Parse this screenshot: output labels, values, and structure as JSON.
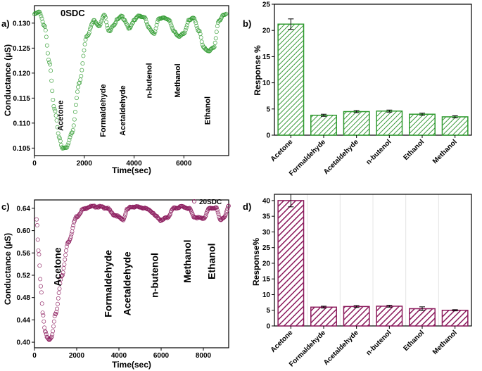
{
  "colors": {
    "green": "#2e9a2e",
    "green_fill": "#7fcf7a",
    "purple": "#8b1a5c",
    "purple_fill": "#c05a92"
  },
  "chart_data": [
    {
      "id": "a",
      "type": "scatter",
      "panel_label": "a)",
      "legend": "0SDC",
      "xlabel": "Time(sec)",
      "ylabel": "Conductance (µS)",
      "xlim": [
        0,
        7800
      ],
      "ylim": [
        0.1035,
        0.1335
      ],
      "xticks": [
        0,
        2000,
        4000,
        6000
      ],
      "yticks": [
        0.105,
        0.11,
        0.115,
        0.12,
        0.125,
        0.13
      ],
      "ytick_labels": [
        "0.105",
        "0.110",
        "0.115",
        "0.120",
        "0.125",
        "0.130"
      ],
      "x": [
        0,
        200,
        400,
        600,
        800,
        1000,
        1100,
        1300,
        1500,
        1800,
        2100,
        2400,
        2600,
        2800,
        3000,
        3200,
        3350,
        3500,
        3600,
        3800,
        4000,
        4200,
        4400,
        4600,
        4800,
        5000,
        5200,
        5400,
        5600,
        5800,
        6000,
        6200,
        6400,
        6600,
        6800,
        7000,
        7200,
        7400,
        7600,
        7700
      ],
      "values": [
        0.1318,
        0.1322,
        0.1295,
        0.122,
        0.113,
        0.107,
        0.105,
        0.1052,
        0.108,
        0.118,
        0.1275,
        0.1305,
        0.1295,
        0.1315,
        0.1285,
        0.1295,
        0.131,
        0.1315,
        0.1305,
        0.129,
        0.1305,
        0.1315,
        0.1312,
        0.129,
        0.128,
        0.1308,
        0.1312,
        0.1305,
        0.1285,
        0.1272,
        0.128,
        0.1305,
        0.131,
        0.1285,
        0.125,
        0.1245,
        0.125,
        0.1305,
        0.1315,
        0.1318
      ],
      "annotations": [
        {
          "text": "Acetone",
          "x": 1150,
          "y": 0.1115
        },
        {
          "text": "Formaldehyde",
          "x": 2850,
          "y": 0.1125
        },
        {
          "text": "Acetaldehyde",
          "x": 3650,
          "y": 0.1125
        },
        {
          "text": "n-butenol",
          "x": 4700,
          "y": 0.1185
        },
        {
          "text": "Methanol",
          "x": 5850,
          "y": 0.1185
        },
        {
          "text": "Ethanol",
          "x": 7050,
          "y": 0.1125
        }
      ]
    },
    {
      "id": "b",
      "type": "bar",
      "panel_label": "b)",
      "ylabel": "Response %",
      "ylim": [
        0,
        25
      ],
      "yticks": [
        0,
        5,
        10,
        15,
        20,
        25
      ],
      "categories": [
        "Acetone",
        "Formaldehyde",
        "Acetaldehyde",
        "n-butenol",
        "Ethanol",
        "Methanol"
      ],
      "values": [
        21.2,
        3.8,
        4.5,
        4.6,
        4.0,
        3.5
      ],
      "errors": [
        1.0,
        0.2,
        0.2,
        0.2,
        0.2,
        0.2
      ]
    },
    {
      "id": "c",
      "type": "scatter",
      "panel_label": "c)",
      "legend": "20SDC",
      "xlabel": "Time(sec)",
      "ylabel": "Conductance (µS)",
      "xlim": [
        0,
        9200
      ],
      "ylim": [
        0.39,
        0.655
      ],
      "xticks": [
        0,
        2000,
        4000,
        6000,
        8000
      ],
      "yticks": [
        0.4,
        0.44,
        0.48,
        0.52,
        0.56,
        0.6,
        0.64
      ],
      "ytick_labels": [
        "0.40",
        "0.44",
        "0.48",
        "0.52",
        "0.56",
        "0.60",
        "0.64"
      ],
      "x": [
        100,
        200,
        300,
        400,
        500,
        600,
        700,
        800,
        1000,
        1300,
        1600,
        2000,
        2300,
        2600,
        3000,
        3400,
        3800,
        4200,
        4400,
        4600,
        5000,
        5400,
        5800,
        6000,
        6300,
        6600,
        7000,
        7300,
        7600,
        8000,
        8300,
        8600,
        8800,
        9000,
        9200
      ],
      "values": [
        0.62,
        0.56,
        0.5,
        0.45,
        0.42,
        0.408,
        0.403,
        0.41,
        0.45,
        0.52,
        0.58,
        0.625,
        0.638,
        0.643,
        0.643,
        0.641,
        0.628,
        0.62,
        0.638,
        0.643,
        0.642,
        0.638,
        0.625,
        0.618,
        0.624,
        0.64,
        0.643,
        0.64,
        0.624,
        0.622,
        0.64,
        0.641,
        0.62,
        0.624,
        0.643
      ],
      "annotations": [
        {
          "text": "Acetone",
          "x": 1250,
          "y": 0.535
        },
        {
          "text": "Formaldehyde",
          "x": 3650,
          "y": 0.505
        },
        {
          "text": "Acetaldehyde",
          "x": 4550,
          "y": 0.505
        },
        {
          "text": "n-butenol",
          "x": 5850,
          "y": 0.52
        },
        {
          "text": "Methanol",
          "x": 7400,
          "y": 0.545
        },
        {
          "text": "Ethanol",
          "x": 8550,
          "y": 0.545
        }
      ]
    },
    {
      "id": "d",
      "type": "bar",
      "panel_label": "d)",
      "ylabel": "Response%",
      "ylim": [
        0,
        42
      ],
      "yticks": [
        0,
        5,
        10,
        15,
        20,
        25,
        30,
        35,
        40
      ],
      "categories": [
        "Acetone",
        "Formaldehyde",
        "Acetaldehyde",
        "n-butenol",
        "Ethanol",
        "Methanol"
      ],
      "values": [
        40.0,
        6.0,
        6.2,
        6.3,
        5.5,
        5.0
      ],
      "errors": [
        2.0,
        0.3,
        0.3,
        0.3,
        0.6,
        0.2
      ]
    }
  ]
}
